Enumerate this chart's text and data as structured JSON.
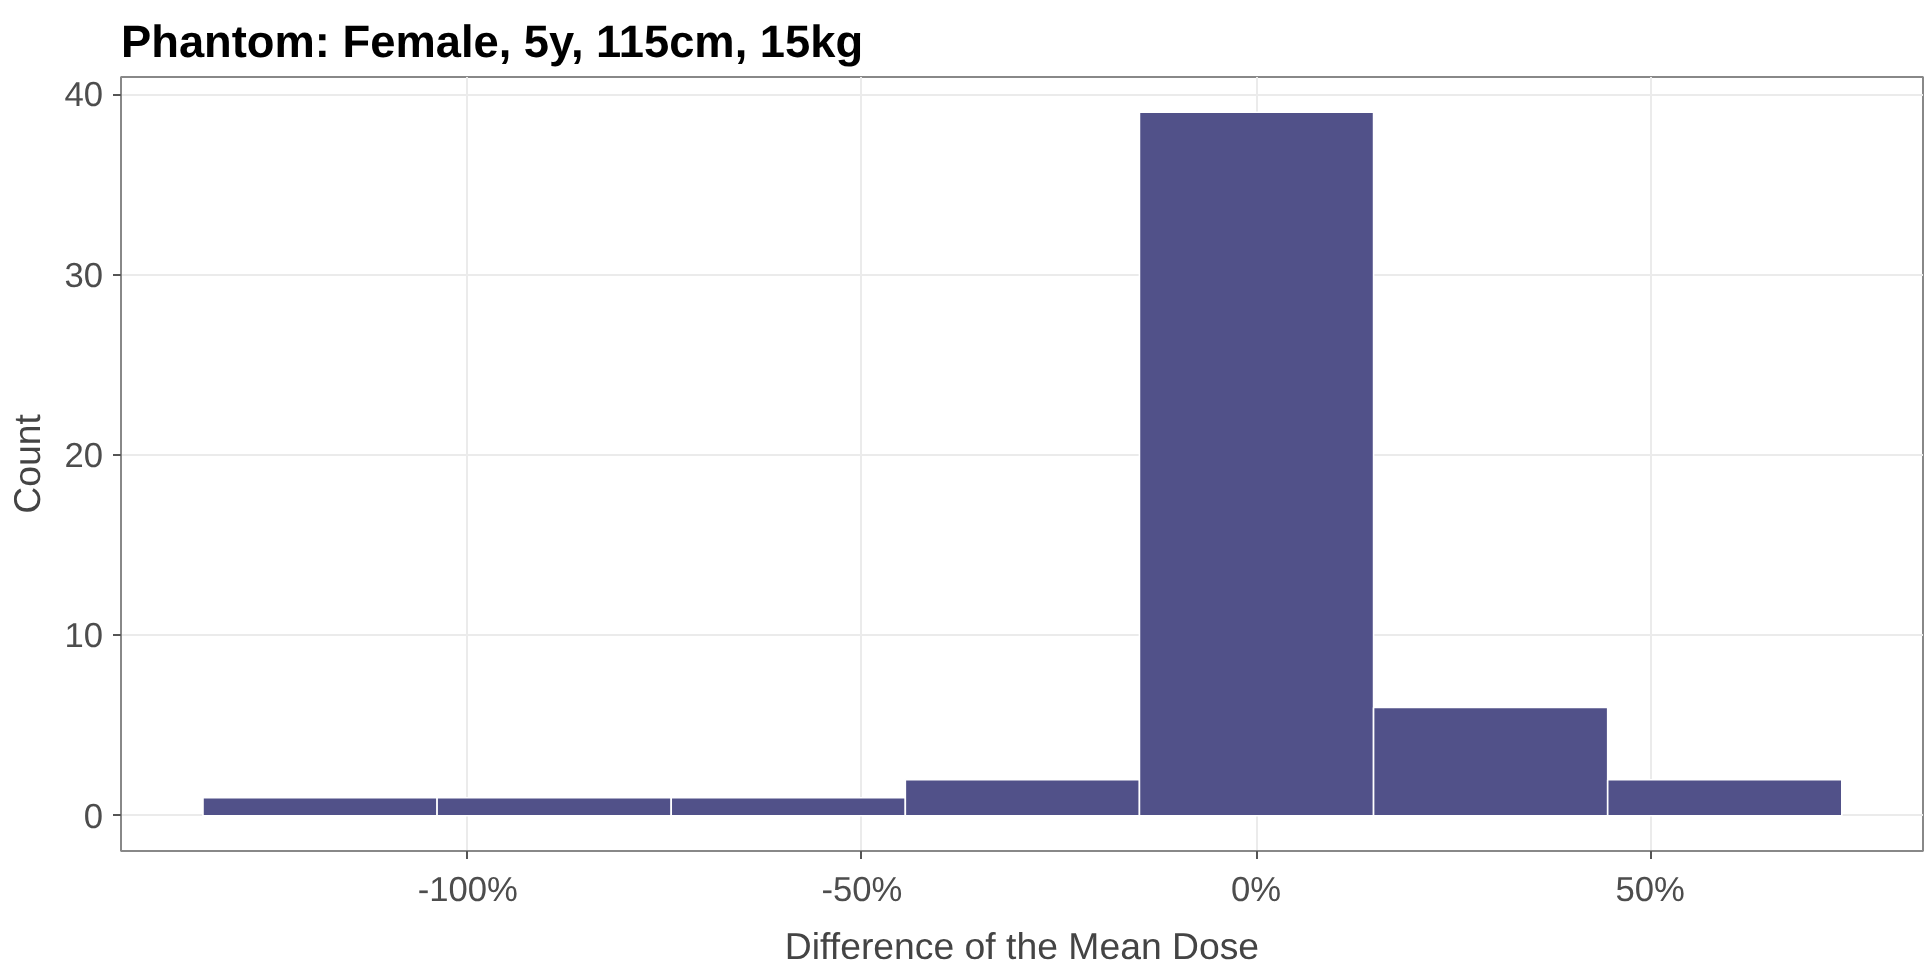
{
  "chart_data": {
    "type": "histogram",
    "title": "Phantom: Female, 5y, 115cm, 15kg",
    "xlabel": "Difference of the Mean Dose",
    "ylabel": "Count",
    "bins": [
      -133.6,
      -103.9,
      -74.2,
      -44.5,
      -14.8,
      14.9,
      44.6,
      74.3
    ],
    "values": [
      1,
      1,
      1,
      2,
      39,
      6,
      2
    ],
    "color": "#515189",
    "xlim": [
      -144,
      84.6
    ],
    "ylim": [
      -1.95,
      40.95
    ],
    "xticks": [
      {
        "value": -100,
        "label": "-100%"
      },
      {
        "value": -50,
        "label": "-50%"
      },
      {
        "value": 0,
        "label": "0%"
      },
      {
        "value": 50,
        "label": "50%"
      }
    ],
    "yticks": [
      0,
      10,
      20,
      30,
      40
    ],
    "grid": true
  }
}
